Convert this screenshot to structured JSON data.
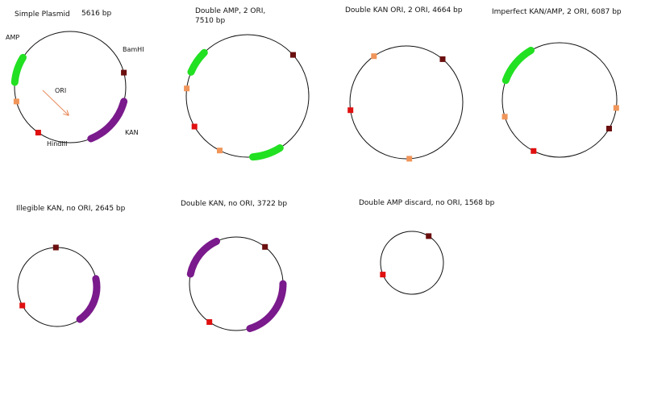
{
  "colors": {
    "background": "#ffffff",
    "outline": "#111111",
    "amp_gene": "#22e022",
    "kan_gene": "#7a1a8c",
    "ori_marker": "#f0955a",
    "ori_arrow": "#e88a5c",
    "bamhi_marker": "#6b0f0f",
    "hindiii_marker": "#e01010"
  },
  "legend_items": {
    "amp": "AMP",
    "kan": "KAN",
    "ori": "ORI",
    "bamhi": "BamHI",
    "hindiii": "HindIII"
  },
  "plasmids": [
    {
      "title": "Simple Plasmid",
      "size_text": "5616 bp",
      "arcs": [
        {
          "gene": "amp",
          "from": 185,
          "to": 212
        },
        {
          "gene": "kan",
          "from": 15,
          "to": 68
        }
      ],
      "markers": [
        {
          "site": "ori",
          "angle": 165
        },
        {
          "site": "bamhi",
          "angle": 345
        },
        {
          "site": "hindiii",
          "angle": 125
        }
      ]
    },
    {
      "title": "Double AMP, 2 ORI,",
      "size_text": "7510 bp",
      "arcs": [
        {
          "gene": "amp",
          "from": 203,
          "to": 225
        },
        {
          "gene": "amp",
          "from": 58,
          "to": 85
        }
      ],
      "markers": [
        {
          "site": "bamhi",
          "angle": 318
        },
        {
          "site": "ori",
          "angle": 187
        },
        {
          "site": "hindiii",
          "angle": 150
        },
        {
          "site": "ori",
          "angle": 117
        }
      ]
    },
    {
      "title": "Double KAN ORI, 2 ORI, 4664 bp",
      "arcs": [],
      "markers": [
        {
          "site": "ori",
          "angle": 235
        },
        {
          "site": "bamhi",
          "angle": 310
        },
        {
          "site": "hindiii",
          "angle": 172
        },
        {
          "site": "ori",
          "angle": 87
        }
      ]
    },
    {
      "title": "Imperfect KAN/AMP, 2 ORI, 6087 bp",
      "arcs": [
        {
          "gene": "amp",
          "from": 200,
          "to": 240
        }
      ],
      "markers": [
        {
          "site": "ori",
          "angle": 8
        },
        {
          "site": "bamhi",
          "angle": 30
        },
        {
          "site": "ori",
          "angle": 163
        },
        {
          "site": "hindiii",
          "angle": 117
        }
      ]
    },
    {
      "title": "Illegible KAN, no ORI, 2645 bp",
      "arcs": [
        {
          "gene": "kan",
          "from": 348,
          "to": 55
        }
      ],
      "markers": [
        {
          "site": "bamhi",
          "angle": 268
        },
        {
          "site": "hindiii",
          "angle": 152
        }
      ]
    },
    {
      "title": "Double KAN, no ORI, 3722 bp",
      "arcs": [
        {
          "gene": "kan",
          "from": 192,
          "to": 245
        },
        {
          "gene": "kan",
          "from": 0,
          "to": 73
        }
      ],
      "markers": [
        {
          "site": "bamhi",
          "angle": 308
        },
        {
          "site": "hindiii",
          "angle": 125
        }
      ]
    },
    {
      "title": "Double AMP discard, no ORI, 1568 bp",
      "arcs": [],
      "markers": [
        {
          "site": "bamhi",
          "angle": 302
        },
        {
          "site": "hindiii",
          "angle": 158
        }
      ]
    }
  ]
}
